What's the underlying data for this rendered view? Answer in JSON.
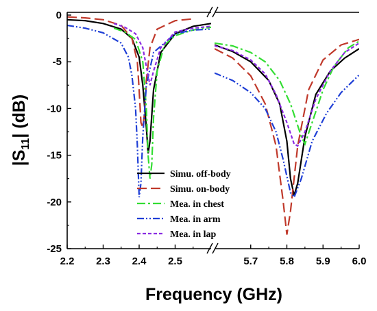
{
  "chart_data": {
    "type": "line",
    "xlabel": "Frequency (GHz)",
    "ylabel_main": "|S",
    "ylabel_sub": "11",
    "ylabel_tail": "| (dB)",
    "ylim": [
      -25,
      0
    ],
    "y_ticks": [
      {
        "value": 0,
        "label": "0"
      },
      {
        "value": -5,
        "label": "-5"
      },
      {
        "value": -10,
        "label": "-10"
      },
      {
        "value": -15,
        "label": "-15"
      },
      {
        "value": -20,
        "label": "-20"
      },
      {
        "value": -25,
        "label": "-25"
      }
    ],
    "x_break": true,
    "x_segments": [
      {
        "xlim": [
          2.2,
          2.6
        ],
        "ticks": [
          {
            "value": 2.2,
            "label": "2.2"
          },
          {
            "value": 2.3,
            "label": "2.3"
          },
          {
            "value": 2.4,
            "label": "2.4"
          },
          {
            "value": 2.5,
            "label": "2.5"
          }
        ]
      },
      {
        "xlim": [
          5.6,
          6.0
        ],
        "ticks": [
          {
            "value": 5.7,
            "label": "5.7"
          },
          {
            "value": 5.8,
            "label": "5.8"
          },
          {
            "value": 5.9,
            "label": "5.9"
          },
          {
            "value": 6.0,
            "label": "6.0"
          }
        ]
      }
    ],
    "legend_position": "lower-center",
    "series": [
      {
        "name": "Simu. off-body",
        "color": "#000000",
        "dash": "solid",
        "segments": [
          [
            [
              2.2,
              -0.5
            ],
            [
              2.25,
              -0.6
            ],
            [
              2.3,
              -0.9
            ],
            [
              2.35,
              -1.5
            ],
            [
              2.38,
              -2.5
            ],
            [
              2.4,
              -4.5
            ],
            [
              2.41,
              -7.5
            ],
            [
              2.42,
              -12.0
            ],
            [
              2.425,
              -14.8
            ],
            [
              2.43,
              -13.5
            ],
            [
              2.44,
              -8.0
            ],
            [
              2.46,
              -4.0
            ],
            [
              2.5,
              -2.0
            ],
            [
              2.55,
              -1.2
            ],
            [
              2.6,
              -0.9
            ]
          ],
          [
            [
              5.6,
              -3.2
            ],
            [
              5.65,
              -3.9
            ],
            [
              5.7,
              -5.0
            ],
            [
              5.75,
              -7.0
            ],
            [
              5.78,
              -9.5
            ],
            [
              5.8,
              -13.5
            ],
            [
              5.81,
              -17.5
            ],
            [
              5.82,
              -19.3
            ],
            [
              5.83,
              -18.0
            ],
            [
              5.85,
              -13.0
            ],
            [
              5.88,
              -8.5
            ],
            [
              5.92,
              -6.0
            ],
            [
              5.96,
              -4.6
            ],
            [
              6.0,
              -3.6
            ]
          ]
        ]
      },
      {
        "name": "Simu. on-body",
        "color": "#c0392b",
        "dash": "long-dash",
        "segments": [
          [
            [
              2.2,
              -0.2
            ],
            [
              2.25,
              -0.3
            ],
            [
              2.3,
              -0.5
            ],
            [
              2.35,
              -1.1
            ],
            [
              2.38,
              -2.5
            ],
            [
              2.395,
              -5.0
            ],
            [
              2.4,
              -8.0
            ],
            [
              2.405,
              -11.5
            ],
            [
              2.41,
              -12.0
            ],
            [
              2.415,
              -10.5
            ],
            [
              2.42,
              -7.0
            ],
            [
              2.43,
              -3.5
            ],
            [
              2.45,
              -1.5
            ],
            [
              2.5,
              -0.6
            ],
            [
              2.55,
              -0.4
            ]
          ],
          [
            [
              5.6,
              -3.6
            ],
            [
              5.65,
              -4.6
            ],
            [
              5.7,
              -6.5
            ],
            [
              5.74,
              -9.5
            ],
            [
              5.77,
              -14.0
            ],
            [
              5.79,
              -20.0
            ],
            [
              5.8,
              -23.5
            ],
            [
              5.81,
              -21.0
            ],
            [
              5.83,
              -14.0
            ],
            [
              5.86,
              -8.0
            ],
            [
              5.9,
              -4.8
            ],
            [
              5.95,
              -3.2
            ],
            [
              6.0,
              -2.6
            ]
          ]
        ]
      },
      {
        "name": "Mea. in chest",
        "color": "#33dd33",
        "dash": "dash-dot",
        "segments": [
          [
            [
              2.33,
              -1.4
            ],
            [
              2.36,
              -1.8
            ],
            [
              2.39,
              -2.6
            ],
            [
              2.41,
              -5.0
            ],
            [
              2.42,
              -10.0
            ],
            [
              2.425,
              -15.0
            ],
            [
              2.43,
              -17.5
            ],
            [
              2.435,
              -16.0
            ],
            [
              2.44,
              -11.0
            ],
            [
              2.45,
              -6.0
            ],
            [
              2.47,
              -3.2
            ],
            [
              2.5,
              -2.2
            ],
            [
              2.55,
              -1.6
            ],
            [
              2.6,
              -1.3
            ]
          ],
          [
            [
              5.6,
              -3.0
            ],
            [
              5.65,
              -3.3
            ],
            [
              5.7,
              -4.0
            ],
            [
              5.74,
              -5.0
            ],
            [
              5.78,
              -7.0
            ],
            [
              5.81,
              -9.5
            ],
            [
              5.84,
              -13.0
            ],
            [
              5.85,
              -13.8
            ],
            [
              5.87,
              -11.5
            ],
            [
              5.9,
              -8.0
            ],
            [
              5.93,
              -5.5
            ],
            [
              5.97,
              -3.5
            ],
            [
              6.0,
              -2.8
            ]
          ]
        ]
      },
      {
        "name": "Mea. in arm",
        "color": "#1f3fd6",
        "dash": "dash-dot-dot",
        "segments": [
          [
            [
              2.2,
              -1.1
            ],
            [
              2.25,
              -1.4
            ],
            [
              2.3,
              -1.9
            ],
            [
              2.35,
              -3.0
            ],
            [
              2.37,
              -4.5
            ],
            [
              2.38,
              -6.5
            ],
            [
              2.39,
              -10.0
            ],
            [
              2.395,
              -14.0
            ],
            [
              2.4,
              -19.5
            ],
            [
              2.405,
              -18.0
            ],
            [
              2.41,
              -13.0
            ],
            [
              2.42,
              -7.5
            ],
            [
              2.44,
              -4.0
            ],
            [
              2.5,
              -2.0
            ],
            [
              2.55,
              -1.6
            ],
            [
              2.6,
              -1.5
            ]
          ],
          [
            [
              5.6,
              -6.2
            ],
            [
              5.65,
              -7.0
            ],
            [
              5.7,
              -8.3
            ],
            [
              5.74,
              -10.0
            ],
            [
              5.77,
              -12.5
            ],
            [
              5.79,
              -15.5
            ],
            [
              5.81,
              -19.0
            ],
            [
              5.82,
              -19.5
            ],
            [
              5.84,
              -17.5
            ],
            [
              5.87,
              -13.5
            ],
            [
              5.91,
              -10.5
            ],
            [
              5.95,
              -8.3
            ],
            [
              6.0,
              -6.4
            ]
          ]
        ]
      },
      {
        "name": "Mea. in lap",
        "color": "#8a2be2",
        "dash": "short-dash",
        "segments": [
          [
            [
              2.33,
              -0.9
            ],
            [
              2.36,
              -1.3
            ],
            [
              2.39,
              -2.0
            ],
            [
              2.41,
              -3.5
            ],
            [
              2.42,
              -5.5
            ],
            [
              2.43,
              -7.5
            ],
            [
              2.44,
              -6.0
            ],
            [
              2.46,
              -3.5
            ],
            [
              2.5,
              -1.8
            ],
            [
              2.55,
              -1.4
            ],
            [
              2.6,
              -1.2
            ]
          ],
          [
            [
              5.6,
              -3.3
            ],
            [
              5.65,
              -3.8
            ],
            [
              5.7,
              -4.8
            ],
            [
              5.74,
              -6.3
            ],
            [
              5.77,
              -8.5
            ],
            [
              5.8,
              -11.5
            ],
            [
              5.82,
              -13.8
            ],
            [
              5.83,
              -14.0
            ],
            [
              5.85,
              -12.5
            ],
            [
              5.88,
              -9.0
            ],
            [
              5.92,
              -6.0
            ],
            [
              5.96,
              -4.0
            ],
            [
              6.0,
              -3.0
            ]
          ]
        ]
      }
    ]
  }
}
